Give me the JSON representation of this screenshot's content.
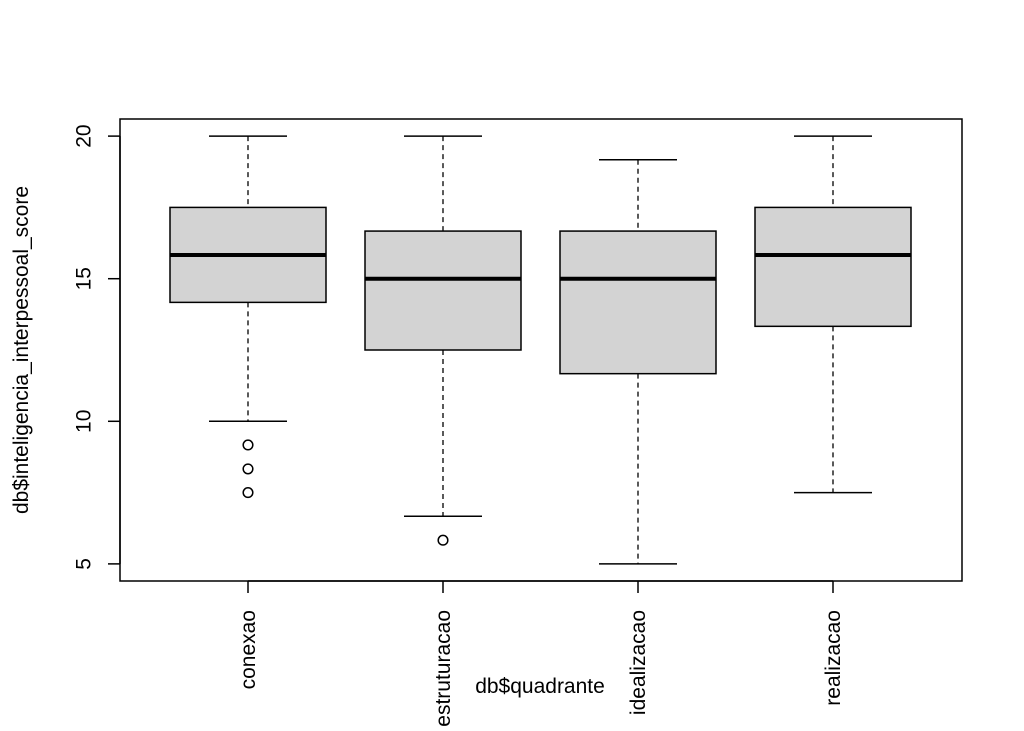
{
  "chart_data": {
    "type": "boxplot",
    "title": "",
    "xlabel": "db$quadrante",
    "ylabel": "db$inteligencia_interpessoal_score",
    "ylim": [
      4.4,
      20.6
    ],
    "yticks": [
      5,
      10,
      15,
      20
    ],
    "categories": [
      "conexao",
      "estruturacao",
      "idealizacao",
      "realizacao"
    ],
    "boxes": [
      {
        "category": "conexao",
        "whisker_low": 10,
        "q1": 14.17,
        "median": 15.83,
        "q3": 17.5,
        "whisker_high": 20,
        "outliers": [
          9.17,
          8.33,
          7.5
        ]
      },
      {
        "category": "estruturacao",
        "whisker_low": 6.67,
        "q1": 12.5,
        "median": 15.0,
        "q3": 16.67,
        "whisker_high": 20,
        "outliers": [
          5.83
        ]
      },
      {
        "category": "idealizacao",
        "whisker_low": 5,
        "q1": 11.67,
        "median": 15.0,
        "q3": 16.67,
        "whisker_high": 19.17,
        "outliers": []
      },
      {
        "category": "realizacao",
        "whisker_low": 7.5,
        "q1": 13.33,
        "median": 15.83,
        "q3": 17.5,
        "whisker_high": 20,
        "outliers": []
      }
    ],
    "colors": {
      "box_fill": "#d3d3d3",
      "stroke": "#000000"
    },
    "grid": false,
    "legend": "none"
  }
}
